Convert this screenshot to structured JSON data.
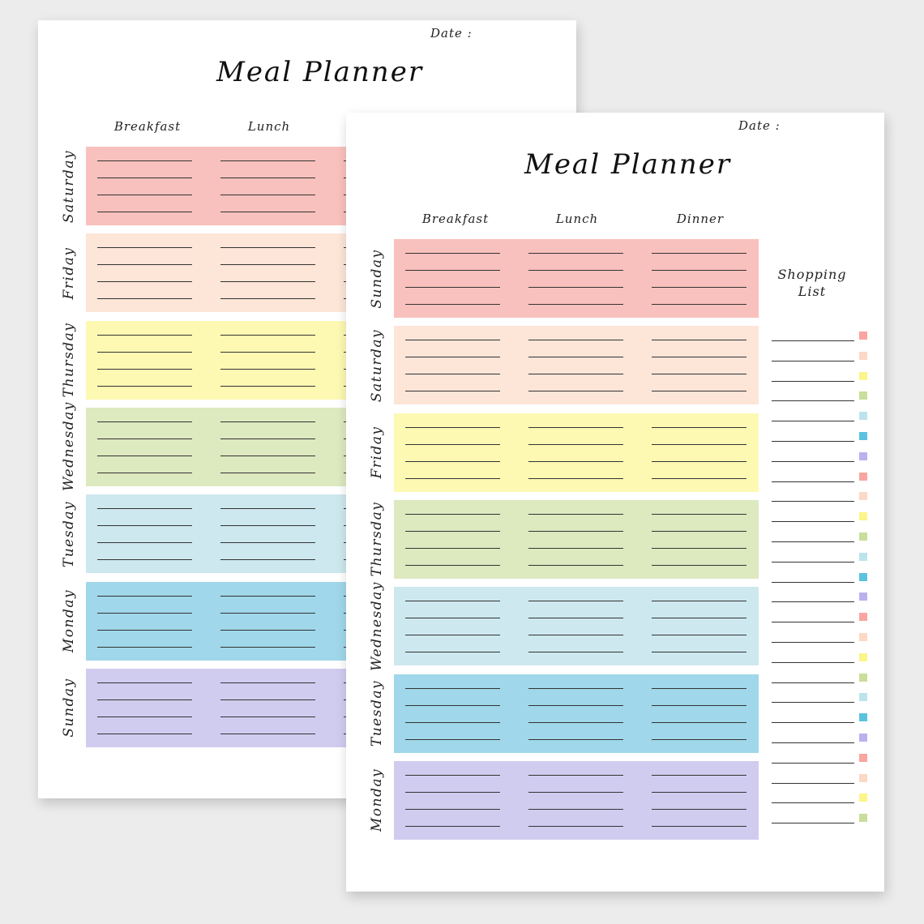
{
  "back_page": {
    "date_label": "Date :",
    "title": "Meal Planner",
    "columns": [
      "Breakfast",
      "Lunch"
    ],
    "days": [
      {
        "name": "Saturday",
        "color": "#f9c1bd"
      },
      {
        "name": "Friday",
        "color": "#fde5d8"
      },
      {
        "name": "Thursday",
        "color": "#fdf9b3"
      },
      {
        "name": "Wednesday",
        "color": "#dde9bf"
      },
      {
        "name": "Tuesday",
        "color": "#cde8ef"
      },
      {
        "name": "Monday",
        "color": "#a0d7ea"
      },
      {
        "name": "Sunday",
        "color": "#d0ccf0"
      }
    ]
  },
  "front_page": {
    "date_label": "Date :",
    "title": "Meal Planner",
    "columns": [
      "Breakfast",
      "Lunch",
      "Dinner"
    ],
    "days": [
      {
        "name": "Sunday",
        "color": "#f9c1bd"
      },
      {
        "name": "Saturday",
        "color": "#fde5d8"
      },
      {
        "name": "Friday",
        "color": "#fdf9b3"
      },
      {
        "name": "Thursday",
        "color": "#dde9bf"
      },
      {
        "name": "Wednesday",
        "color": "#cde8ef"
      },
      {
        "name": "Tuesday",
        "color": "#a0d7ea"
      },
      {
        "name": "Monday",
        "color": "#d0ccf0"
      }
    ],
    "shopping_list": {
      "title_line1": "Shopping",
      "title_line2": "List",
      "square_colors": [
        "#f9a5a0",
        "#fcd8c6",
        "#fbf58a",
        "#c9de9a",
        "#bde3ec",
        "#5bc3e0",
        "#b9b2ef",
        "#f9a5a0",
        "#fcd8c6",
        "#fbf58a",
        "#c9de9a",
        "#bde3ec",
        "#5bc3e0",
        "#b9b2ef",
        "#f9a5a0",
        "#fcd8c6",
        "#fbf58a",
        "#c9de9a",
        "#bde3ec",
        "#5bc3e0",
        "#b9b2ef",
        "#f9a5a0",
        "#fcd8c6",
        "#fbf58a",
        "#c9de9a"
      ]
    }
  }
}
